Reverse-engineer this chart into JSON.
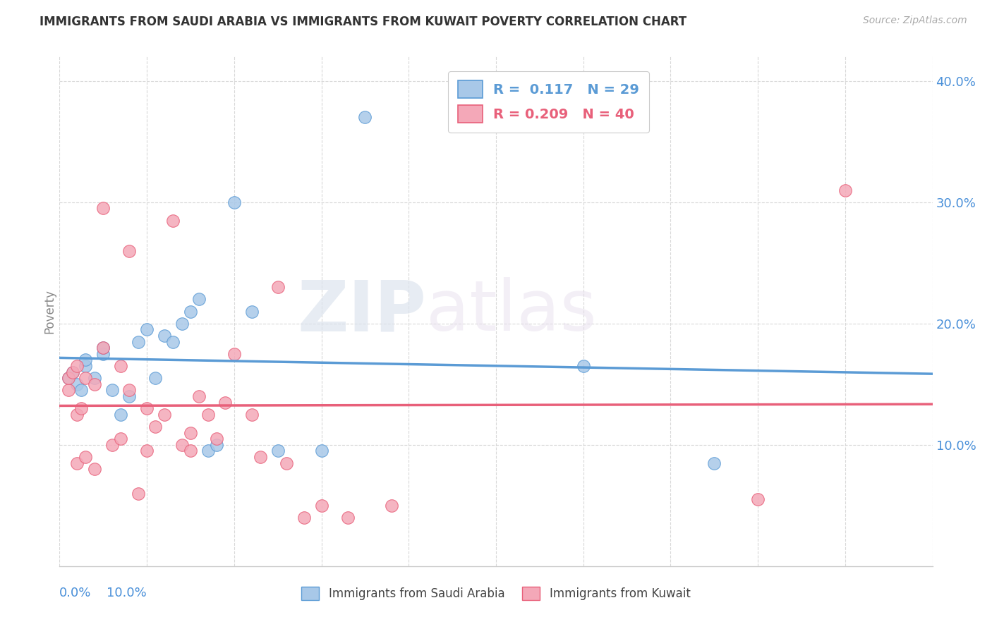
{
  "title": "IMMIGRANTS FROM SAUDI ARABIA VS IMMIGRANTS FROM KUWAIT POVERTY CORRELATION CHART",
  "source": "Source: ZipAtlas.com",
  "ylabel": "Poverty",
  "xlim": [
    0.0,
    10.0
  ],
  "ylim": [
    0.0,
    42.0
  ],
  "yticks": [
    10.0,
    20.0,
    30.0,
    40.0
  ],
  "ytick_labels": [
    "10.0%",
    "20.0%",
    "30.0%",
    "40.0%"
  ],
  "xtick_labels": [
    "0.0%",
    "10.0%"
  ],
  "watermark_zip": "ZIP",
  "watermark_atlas": "atlas",
  "saudi_color": "#a8c8e8",
  "kuwait_color": "#f4a8b8",
  "saudi_edge_color": "#5b9bd5",
  "kuwait_edge_color": "#e8607a",
  "saudi_line_color": "#5b9bd5",
  "kuwait_line_color": "#e8607a",
  "background_color": "#ffffff",
  "grid_color": "#d8d8d8",
  "saudi_x": [
    0.1,
    0.15,
    0.2,
    0.25,
    0.3,
    0.3,
    0.4,
    0.5,
    0.5,
    0.6,
    0.7,
    0.8,
    0.9,
    1.0,
    1.1,
    1.2,
    1.3,
    1.4,
    1.5,
    1.6,
    1.7,
    1.8,
    2.0,
    2.2,
    2.5,
    3.0,
    3.5,
    6.0,
    7.5
  ],
  "saudi_y": [
    15.5,
    16.0,
    15.0,
    14.5,
    16.5,
    17.0,
    15.5,
    17.5,
    18.0,
    14.5,
    12.5,
    14.0,
    18.5,
    19.5,
    15.5,
    19.0,
    18.5,
    20.0,
    21.0,
    22.0,
    9.5,
    10.0,
    30.0,
    21.0,
    9.5,
    9.5,
    37.0,
    16.5,
    8.5
  ],
  "kuwait_x": [
    0.1,
    0.1,
    0.15,
    0.2,
    0.2,
    0.2,
    0.25,
    0.3,
    0.3,
    0.4,
    0.4,
    0.5,
    0.5,
    0.6,
    0.7,
    0.7,
    0.8,
    0.8,
    0.9,
    1.0,
    1.0,
    1.1,
    1.2,
    1.3,
    1.4,
    1.5,
    1.5,
    1.6,
    1.7,
    1.8,
    1.9,
    2.0,
    2.2,
    2.3,
    2.5,
    2.6,
    2.8,
    3.0,
    3.3,
    3.8,
    8.0,
    9.0
  ],
  "kuwait_y": [
    14.5,
    15.5,
    16.0,
    12.5,
    8.5,
    16.5,
    13.0,
    15.5,
    9.0,
    15.0,
    8.0,
    29.5,
    18.0,
    10.0,
    16.5,
    10.5,
    26.0,
    14.5,
    6.0,
    13.0,
    9.5,
    11.5,
    12.5,
    28.5,
    10.0,
    11.0,
    9.5,
    14.0,
    12.5,
    10.5,
    13.5,
    17.5,
    12.5,
    9.0,
    23.0,
    8.5,
    4.0,
    5.0,
    4.0,
    5.0,
    5.5,
    31.0
  ]
}
